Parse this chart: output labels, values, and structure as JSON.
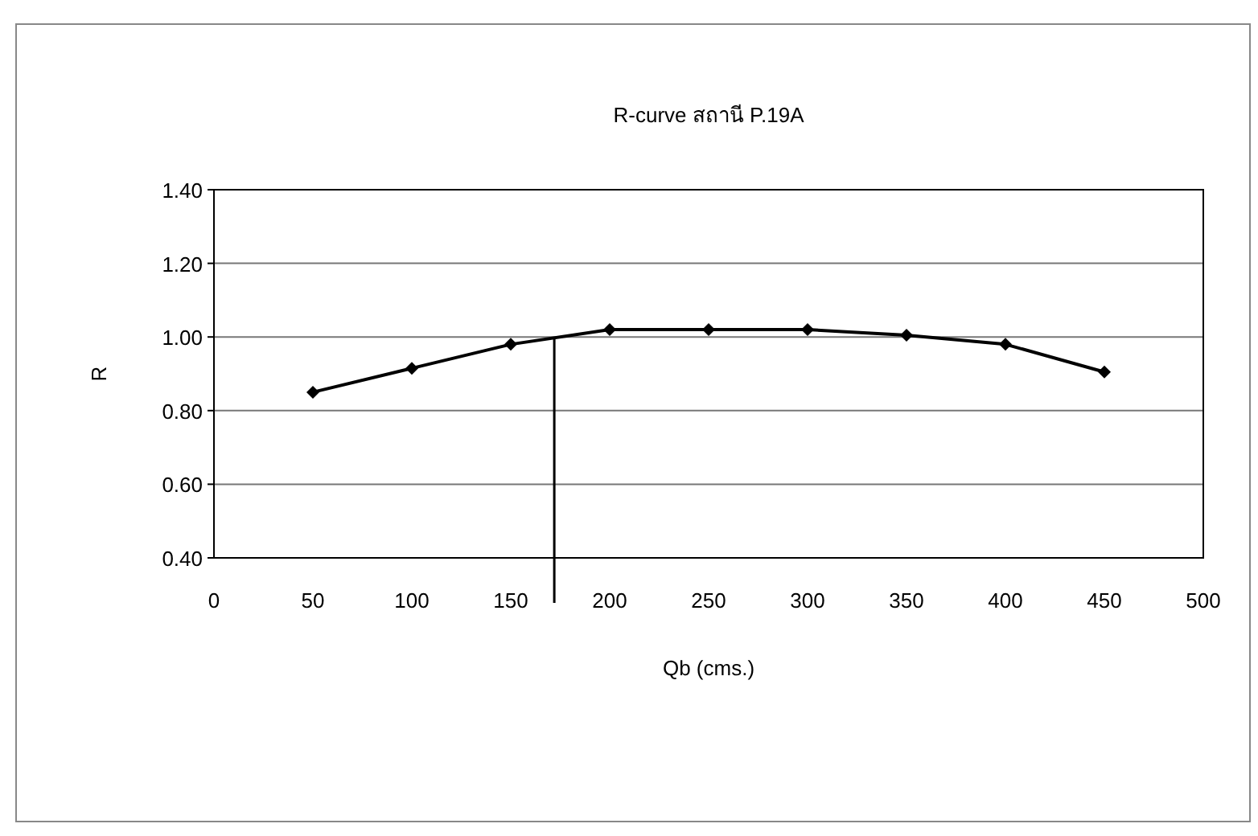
{
  "chart_data": {
    "type": "line",
    "title": "R-curve สถานี P.19A",
    "xlabel": "Qb (cms.)",
    "ylabel": "R",
    "x": [
      50,
      100,
      150,
      200,
      250,
      300,
      350,
      400,
      450
    ],
    "series": [
      {
        "color": "#000000",
        "values": [
          0.85,
          0.915,
          0.98,
          1.02,
          1.02,
          1.02,
          1.005,
          0.98,
          0.905
        ]
      }
    ],
    "xlim": [
      0,
      500
    ],
    "xticks": [
      0,
      50,
      100,
      150,
      200,
      250,
      300,
      350,
      400,
      450,
      500
    ],
    "ylim": [
      0.4,
      1.4
    ],
    "yticks": [
      {
        "value": 0.4,
        "label": "0.40"
      },
      {
        "value": 0.6,
        "label": "0.60"
      },
      {
        "value": 0.8,
        "label": "0.80"
      },
      {
        "value": 1.0,
        "label": "1.00"
      },
      {
        "value": 1.2,
        "label": "1.20"
      },
      {
        "value": 1.4,
        "label": "1.40"
      }
    ],
    "ref_lines": [
      {
        "axis": "x",
        "value": 172,
        "color": "#000000"
      }
    ],
    "grid": "y",
    "marker": "diamond",
    "line_style": "solid"
  }
}
